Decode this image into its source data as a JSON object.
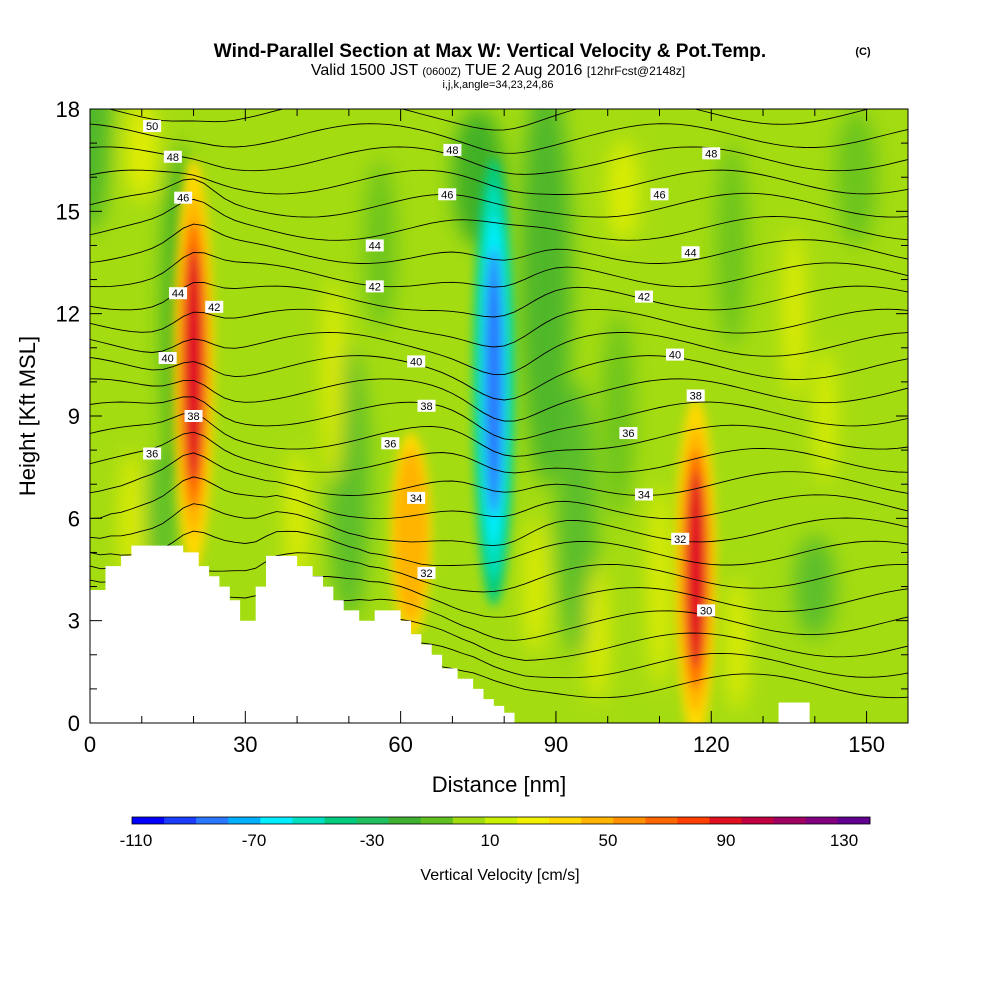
{
  "chart_data": {
    "type": "heatmap",
    "title": "Wind-Parallel Section at Max W: Vertical Velocity & Pot.Temp.",
    "copyright": "(C)",
    "subtitle": {
      "valid": "Valid 1500 JST",
      "zulu": "(0600Z)",
      "date": "TUE 2 Aug 2016",
      "forecast": "[12hrFcst@2148z]"
    },
    "grid_info": "i,j,k,angle=34,23,24,86",
    "xlabel": "Distance [nm]",
    "ylabel": "Height [Kft MSL]",
    "xlim": [
      0,
      158
    ],
    "ylim": [
      0,
      18
    ],
    "x_ticks": [
      "0",
      "30",
      "60",
      "90",
      "120",
      "150"
    ],
    "y_ticks": [
      "0",
      "3",
      "6",
      "9",
      "12",
      "15",
      "18"
    ],
    "colorbar": {
      "label": "Vertical Velocity [cm/s]",
      "tick_labels": [
        "-110",
        "-70",
        "-30",
        "10",
        "50",
        "90",
        "130"
      ],
      "colors": [
        "#0000ff",
        "#1a3cff",
        "#2a78ff",
        "#00b0ff",
        "#00eeff",
        "#00e0c0",
        "#00cc80",
        "#20c060",
        "#40b030",
        "#60c020",
        "#a0dc10",
        "#c8f000",
        "#f0f000",
        "#ffd800",
        "#ffb400",
        "#ff9000",
        "#ff6800",
        "#ff4000",
        "#e01020",
        "#c00040",
        "#a00060",
        "#800080",
        "#600090"
      ]
    },
    "updrafts": [
      {
        "x": 20,
        "z": 10.5,
        "peak_cm_s": 110
      },
      {
        "x": 117,
        "z": 4.5,
        "peak_cm_s": 90
      },
      {
        "x": 62,
        "z": 5.5,
        "peak_cm_s": 50
      }
    ],
    "downdrafts": [
      {
        "x": 78,
        "z": 10.0,
        "peak_cm_s": -110
      }
    ],
    "theta_contours": [
      {
        "label": "50",
        "x": 12,
        "z": 17.5
      },
      {
        "label": "48",
        "x": 16,
        "z": 16.6
      },
      {
        "label": "48",
        "x": 70,
        "z": 16.8
      },
      {
        "label": "48",
        "x": 120,
        "z": 16.7
      },
      {
        "label": "46",
        "x": 18,
        "z": 15.4
      },
      {
        "label": "46",
        "x": 69,
        "z": 15.5
      },
      {
        "label": "46",
        "x": 110,
        "z": 15.5
      },
      {
        "label": "44",
        "x": 17,
        "z": 12.6
      },
      {
        "label": "44",
        "x": 55,
        "z": 14.0
      },
      {
        "label": "44",
        "x": 116,
        "z": 13.8
      },
      {
        "label": "42",
        "x": 24,
        "z": 12.2
      },
      {
        "label": "42",
        "x": 55,
        "z": 12.8
      },
      {
        "label": "42",
        "x": 107,
        "z": 12.5
      },
      {
        "label": "40",
        "x": 15,
        "z": 10.7
      },
      {
        "label": "40",
        "x": 63,
        "z": 10.6
      },
      {
        "label": "40",
        "x": 113,
        "z": 10.8
      },
      {
        "label": "38",
        "x": 20,
        "z": 9.0
      },
      {
        "label": "38",
        "x": 65,
        "z": 9.3
      },
      {
        "label": "38",
        "x": 117,
        "z": 9.6
      },
      {
        "label": "36",
        "x": 12,
        "z": 7.9
      },
      {
        "label": "36",
        "x": 58,
        "z": 8.2
      },
      {
        "label": "36",
        "x": 104,
        "z": 8.5
      },
      {
        "label": "34",
        "x": 63,
        "z": 6.6
      },
      {
        "label": "34",
        "x": 107,
        "z": 6.7
      },
      {
        "label": "32",
        "x": 65,
        "z": 4.4
      },
      {
        "label": "32",
        "x": 114,
        "z": 5.4
      },
      {
        "label": "30",
        "x": 119,
        "z": 3.3
      }
    ],
    "terrain": [
      [
        0,
        3.9
      ],
      [
        3,
        3.9
      ],
      [
        3,
        4.6
      ],
      [
        6,
        4.6
      ],
      [
        6,
        4.9
      ],
      [
        8,
        4.9
      ],
      [
        8,
        5.2
      ],
      [
        18,
        5.2
      ],
      [
        18,
        5.0
      ],
      [
        21,
        5.0
      ],
      [
        21,
        4.6
      ],
      [
        23,
        4.6
      ],
      [
        23,
        4.3
      ],
      [
        25,
        4.3
      ],
      [
        25,
        4.0
      ],
      [
        27,
        4.0
      ],
      [
        27,
        3.6
      ],
      [
        29,
        3.6
      ],
      [
        29,
        3.0
      ],
      [
        32,
        3.0
      ],
      [
        32,
        4.0
      ],
      [
        34,
        4.0
      ],
      [
        34,
        4.9
      ],
      [
        40,
        4.9
      ],
      [
        40,
        4.6
      ],
      [
        43,
        4.6
      ],
      [
        43,
        4.3
      ],
      [
        45,
        4.3
      ],
      [
        45,
        4.0
      ],
      [
        47,
        4.0
      ],
      [
        47,
        3.6
      ],
      [
        49,
        3.6
      ],
      [
        49,
        3.3
      ],
      [
        52,
        3.3
      ],
      [
        52,
        3.0
      ],
      [
        55,
        3.0
      ],
      [
        55,
        3.3
      ],
      [
        60,
        3.3
      ],
      [
        60,
        3.0
      ],
      [
        62,
        3.0
      ],
      [
        62,
        2.6
      ],
      [
        64,
        2.6
      ],
      [
        64,
        2.3
      ],
      [
        66,
        2.3
      ],
      [
        66,
        2.0
      ],
      [
        68,
        2.0
      ],
      [
        68,
        1.6
      ],
      [
        71,
        1.6
      ],
      [
        71,
        1.3
      ],
      [
        74,
        1.3
      ],
      [
        74,
        1.0
      ],
      [
        76,
        1.0
      ],
      [
        76,
        0.7
      ],
      [
        78,
        0.7
      ],
      [
        78,
        0.5
      ],
      [
        80,
        0.5
      ],
      [
        80,
        0.3
      ],
      [
        82,
        0.3
      ],
      [
        82,
        0.0
      ]
    ]
  }
}
